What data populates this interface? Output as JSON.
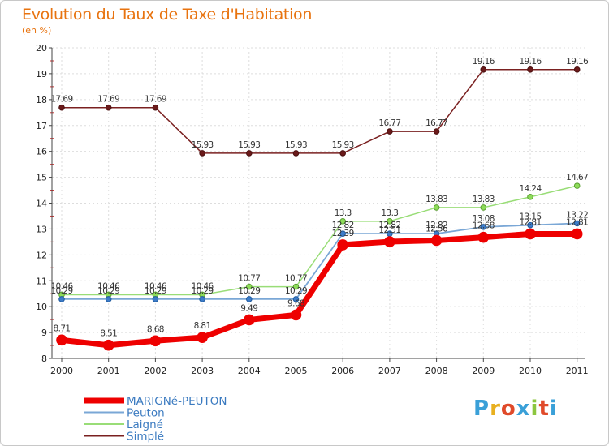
{
  "chart_data": {
    "type": "line",
    "title": "Evolution du Taux de Taxe d'Habitation",
    "subtitle": "(en %)",
    "categories": [
      "2000",
      "2001",
      "2002",
      "2003",
      "2004",
      "2005",
      "2006",
      "2007",
      "2008",
      "2009",
      "2010",
      "2011"
    ],
    "ylim": [
      8,
      20
    ],
    "yticks": [
      8,
      9,
      10,
      11,
      12,
      13,
      14,
      15,
      16,
      17,
      18,
      19,
      20
    ],
    "series": [
      {
        "name": "Simplé",
        "color": "#7a2020",
        "values": [
          17.69,
          17.69,
          17.69,
          15.93,
          15.93,
          15.93,
          15.93,
          16.77,
          16.77,
          19.16,
          19.16,
          19.16
        ]
      },
      {
        "name": "Laigné",
        "color": "#99dd77",
        "values": [
          10.46,
          10.46,
          10.46,
          10.46,
          10.77,
          10.77,
          13.3,
          13.3,
          13.83,
          13.83,
          14.24,
          14.67
        ]
      },
      {
        "name": "Peuton",
        "color": "#7aa7d6",
        "values": [
          10.29,
          10.29,
          10.29,
          10.29,
          10.29,
          10.29,
          12.82,
          12.82,
          12.82,
          13.08,
          13.15,
          13.22
        ]
      },
      {
        "name": "MARIGNé-PEUTON",
        "color": "#ee0000",
        "values": [
          8.71,
          8.51,
          8.68,
          8.81,
          9.49,
          9.68,
          12.39,
          12.51,
          12.56,
          12.68,
          12.81,
          12.81
        ]
      }
    ],
    "legend_order": [
      "MARIGNé-PEUTON",
      "Peuton",
      "Laigné",
      "Simplé"
    ]
  },
  "logo": {
    "letters": [
      "P",
      "r",
      "o",
      "x",
      "i",
      "t",
      "i"
    ],
    "colors": [
      "#3aa0d8",
      "#e8b020",
      "#e04a2a",
      "#3aa0d8",
      "#8cc63f",
      "#e04a2a",
      "#3aa0d8"
    ]
  }
}
